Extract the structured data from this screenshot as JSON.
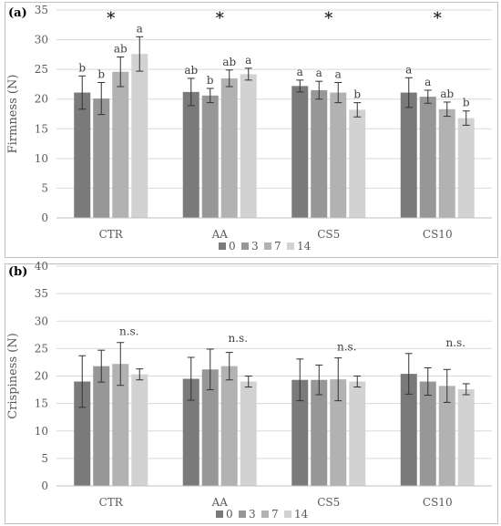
{
  "chart_data": [
    {
      "type": "bar",
      "panel_label": "(a)",
      "ylabel": "Firmness (N)",
      "xlabel": "",
      "ylim": [
        0,
        35
      ],
      "yticks": [
        0,
        5,
        10,
        15,
        20,
        25,
        30,
        35
      ],
      "grid": true,
      "legend": "bottom",
      "categories": [
        "CTR",
        "AA",
        "CS5",
        "CS10"
      ],
      "series": [
        {
          "name": "0",
          "color": "#7a7a7a",
          "values": [
            21.1,
            21.2,
            22.2,
            21.1
          ],
          "errors": [
            2.8,
            2.3,
            1.0,
            2.5
          ],
          "labels": [
            "b",
            "ab",
            "a",
            "a"
          ]
        },
        {
          "name": "3",
          "color": "#979797",
          "values": [
            20.1,
            20.6,
            21.5,
            20.4
          ],
          "errors": [
            2.7,
            1.2,
            1.5,
            1.1
          ],
          "labels": [
            "b",
            "b",
            "a",
            "a"
          ]
        },
        {
          "name": "7",
          "color": "#b2b2b2",
          "values": [
            24.6,
            23.5,
            21.1,
            18.3
          ],
          "errors": [
            2.5,
            1.4,
            1.7,
            1.2
          ],
          "labels": [
            "ab",
            "ab",
            "a",
            "ab"
          ]
        },
        {
          "name": "14",
          "color": "#d2d2d2",
          "values": [
            27.6,
            24.2,
            18.2,
            16.8
          ],
          "errors": [
            2.9,
            1.0,
            1.2,
            1.2
          ],
          "labels": [
            "a",
            "a",
            "b",
            "b"
          ]
        }
      ],
      "group_annotations": [
        "*",
        "*",
        "*",
        "*"
      ]
    },
    {
      "type": "bar",
      "panel_label": "(b)",
      "ylabel": "Crispiness (N)",
      "xlabel": "",
      "ylim": [
        0,
        40
      ],
      "yticks": [
        0,
        5,
        10,
        15,
        20,
        25,
        30,
        35,
        40
      ],
      "grid": true,
      "legend": "bottom",
      "categories": [
        "CTR",
        "AA",
        "CS5",
        "CS10"
      ],
      "series": [
        {
          "name": "0",
          "color": "#7a7a7a",
          "values": [
            19.0,
            19.5,
            19.3,
            20.4
          ],
          "errors": [
            4.7,
            3.9,
            3.8,
            3.7
          ]
        },
        {
          "name": "3",
          "color": "#979797",
          "values": [
            21.8,
            21.2,
            19.3,
            19.0
          ],
          "errors": [
            2.9,
            3.7,
            2.7,
            2.5
          ]
        },
        {
          "name": "7",
          "color": "#b2b2b2",
          "values": [
            22.2,
            21.8,
            19.4,
            18.2
          ],
          "errors": [
            3.9,
            2.5,
            3.9,
            3.0
          ]
        },
        {
          "name": "14",
          "color": "#d2d2d2",
          "values": [
            20.3,
            19.0,
            19.0,
            17.6
          ],
          "errors": [
            1.0,
            1.0,
            1.0,
            1.0
          ]
        }
      ],
      "group_annotations": [
        "n.s.",
        "n.s.",
        "n.s.",
        "n.s."
      ]
    }
  ]
}
